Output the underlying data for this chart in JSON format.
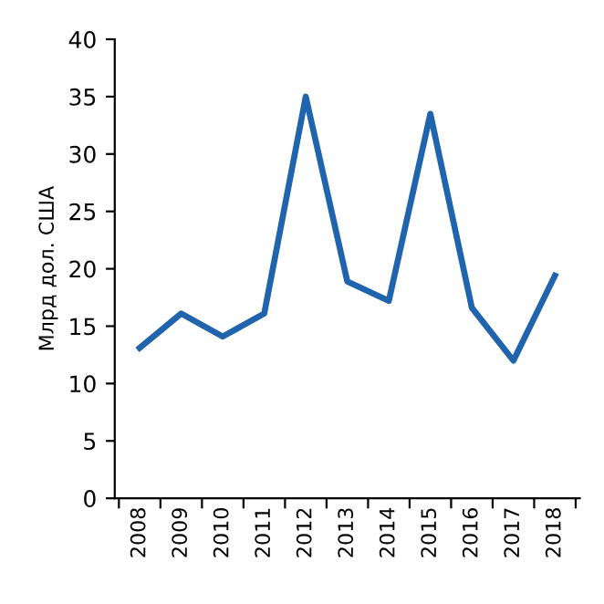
{
  "chart_data": {
    "type": "line",
    "ylabel": "Млрд дол. США",
    "categories": [
      "2008",
      "2009",
      "2010",
      "2011",
      "2012",
      "2013",
      "2014",
      "2015",
      "2016",
      "2017",
      "2018"
    ],
    "series": [
      {
        "color": "#1f64ac",
        "values": [
          13.1,
          16.1,
          14.1,
          16.1,
          35.0,
          18.9,
          17.2,
          33.5,
          16.6,
          12.0,
          19.4
        ]
      }
    ],
    "ylim": [
      0,
      40
    ],
    "yticks": [
      0,
      5,
      10,
      15,
      20,
      25,
      30,
      35,
      40
    ],
    "grid": false,
    "legend": false,
    "marker": "none",
    "line_style": "solid"
  }
}
